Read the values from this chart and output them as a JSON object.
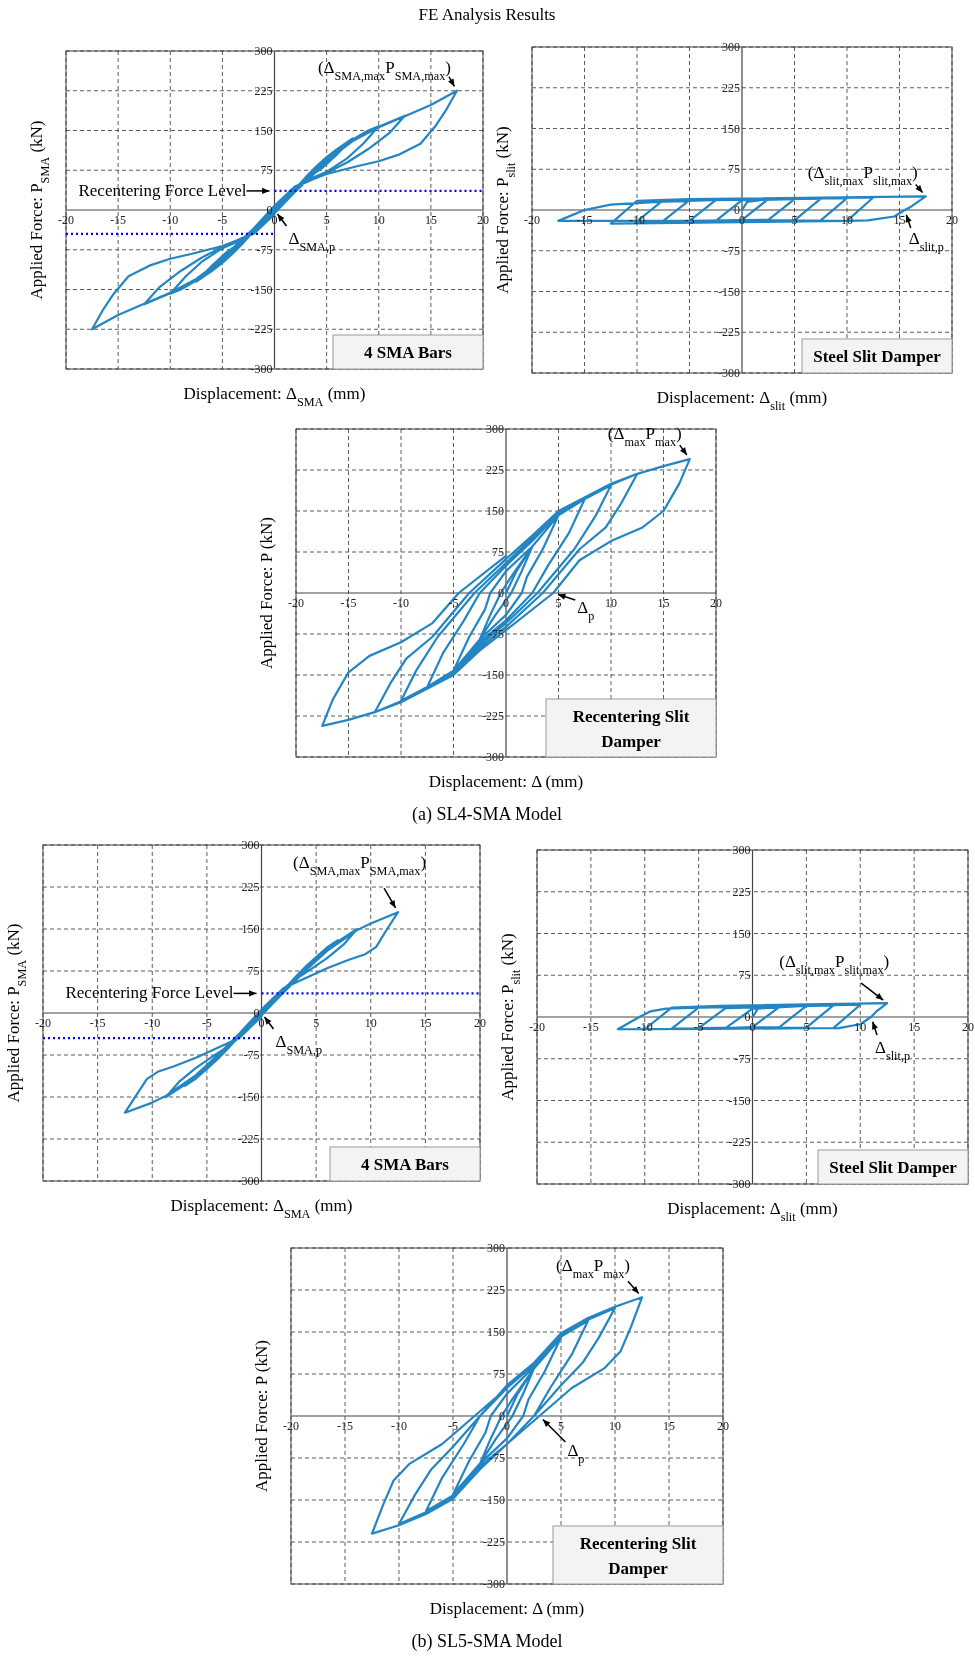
{
  "chart_data": [
    {
      "type": "line",
      "title": "FE Analysis Results",
      "xlabel": "Displacement: Δ$_{SMA}$ (mm)",
      "ylabel": "Applied Force: P$_{SMA}$ (kN)",
      "xlim": [
        -20,
        20
      ],
      "ylim": [
        -300,
        300
      ],
      "xticks": [
        -20,
        -15,
        -10,
        -5,
        0,
        5,
        10,
        15,
        20
      ],
      "yticks": [
        -300,
        -225,
        -150,
        -75,
        0,
        75,
        150,
        225,
        300
      ],
      "grid": true,
      "series": [
        {
          "color": "#2385c2",
          "x": [
            0,
            1,
            2,
            3,
            4,
            5,
            6,
            7.5,
            6,
            4.5,
            3,
            2,
            1,
            0,
            -1,
            -2,
            -3,
            -4,
            -5,
            -6,
            -7.5,
            -6,
            -4.5,
            -3,
            -2,
            -1,
            0,
            2,
            4,
            6,
            7.5,
            9,
            10,
            8.5,
            7,
            5,
            3,
            2,
            0,
            -2,
            -4,
            -6,
            -7.5,
            -9,
            -10,
            -8.5,
            -7,
            -5,
            -3,
            -2,
            0,
            2,
            4,
            6,
            7.5,
            9,
            10,
            12.5,
            11,
            9,
            7,
            5,
            3,
            2,
            0,
            -2,
            -4,
            -6,
            -7.5,
            -9,
            -10,
            -12.5,
            -11,
            -9,
            -7,
            -5,
            -3,
            -2,
            0,
            2,
            4,
            6,
            7.5,
            10,
            12.5,
            15,
            17.5,
            16.5,
            15.5,
            14,
            12,
            10,
            8,
            5,
            3,
            2,
            0,
            -2,
            -4,
            -6,
            -7.5,
            -10,
            -12.5,
            -15,
            -17.5,
            -16.5,
            -15.5,
            -14,
            -12,
            -10,
            -8,
            -5,
            -3,
            -2,
            0
          ],
          "values": [
            0,
            20,
            40,
            62,
            82,
            100,
            115,
            135,
            105,
            78,
            58,
            42,
            22,
            2,
            -20,
            -40,
            -62,
            -82,
            -100,
            -115,
            -135,
            -105,
            -78,
            -58,
            -42,
            -22,
            -2,
            38,
            78,
            112,
            133,
            150,
            158,
            125,
            98,
            72,
            55,
            43,
            4,
            -38,
            -78,
            -112,
            -133,
            -150,
            -158,
            -125,
            -98,
            -72,
            -55,
            -43,
            -4,
            36,
            75,
            110,
            131,
            148,
            157,
            178,
            145,
            115,
            90,
            70,
            52,
            44,
            6,
            -36,
            -75,
            -110,
            -131,
            -148,
            -157,
            -178,
            -145,
            -115,
            -90,
            -70,
            -52,
            -44,
            -6,
            35,
            72,
            108,
            130,
            156,
            177,
            198,
            225,
            190,
            160,
            125,
            105,
            92,
            83,
            68,
            53,
            45,
            8,
            -35,
            -72,
            -108,
            -130,
            -156,
            -177,
            -198,
            -225,
            -190,
            -160,
            -125,
            -105,
            -92,
            -83,
            -68,
            -53,
            -45,
            -8
          ]
        },
        {
          "color": "#0000ff",
          "line_style": "dotted",
          "x": [
            0,
            20
          ],
          "values": [
            36,
            36
          ]
        },
        {
          "color": "#0000ff",
          "line_style": "dotted",
          "x": [
            -20,
            0
          ],
          "values": [
            -45,
            -45
          ]
        }
      ],
      "annotations": [
        {
          "text": "(Δ$_{SMA,max}$P$_{SMA,max}$)",
          "x": 17.5,
          "y": 225
        },
        {
          "text": "Recentering Force Level",
          "x": 0,
          "y": 36
        },
        {
          "text": "Δ$_{SMA,p}$",
          "x": 0,
          "y": 0
        },
        "4 SMA Bars"
      ]
    },
    {
      "type": "line",
      "xlabel": "Displacement: Δ$_{slit}$ (mm)",
      "ylabel": "Applied Force: P$_{slit}$ (kN)",
      "xlim": [
        -20,
        20
      ],
      "ylim": [
        -300,
        300
      ],
      "xticks": [
        -20,
        -15,
        -10,
        -5,
        0,
        5,
        10,
        15,
        20
      ],
      "yticks": [
        -300,
        -225,
        -150,
        -75,
        0,
        75,
        150,
        225,
        300
      ],
      "grid": true,
      "series": [
        {
          "color": "#2385c2",
          "x": [
            0,
            0.5,
            2.5,
            0,
            -2.5,
            0,
            5,
            2.5,
            -5,
            -2.5,
            7.5,
            5,
            -7.5,
            -5,
            10,
            7.5,
            -10,
            -7.5,
            12.5,
            10,
            -12.5,
            -10,
            -5,
            17.5,
            16,
            15.5,
            14.5,
            12,
            10,
            -17.5,
            -15,
            -12.5,
            -8,
            0
          ],
          "values": [
            0,
            15,
            20,
            -18,
            -20,
            18,
            20,
            -18,
            -20,
            18,
            21,
            -19,
            -20,
            18,
            22,
            -19,
            -21,
            18,
            23,
            -20,
            -25,
            17,
            20,
            25,
            5,
            0,
            -12,
            -19,
            -20,
            -20,
            0,
            10,
            15,
            20
          ]
        }
      ],
      "annotations": [
        {
          "text": "(Δ$_{slit,max}$P$_{slit,max}$)",
          "x": 17.5,
          "y": 25
        },
        {
          "text": "Δ$_{slit,p}$",
          "x": 15.5,
          "y": 0
        },
        "Steel Slit Damper"
      ]
    },
    {
      "type": "line",
      "xlabel": "Displacement: Δ (mm)",
      "ylabel": "Applied Force: P (kN)",
      "xlim": [
        -20,
        20
      ],
      "ylim": [
        -300,
        300
      ],
      "xticks": [
        -20,
        -15,
        -10,
        -5,
        0,
        5,
        10,
        15,
        20
      ],
      "yticks": [
        -300,
        -225,
        -150,
        -75,
        0,
        75,
        150,
        225,
        300
      ],
      "grid": true,
      "series": [
        {
          "color": "#2385c2",
          "x": [
            0,
            1,
            2.5,
            1.5,
            0.5,
            -1,
            -2.5,
            -1.5,
            -0.5,
            0.5,
            2.5,
            5,
            3.5,
            2,
            1.5,
            0,
            -2.5,
            -5,
            -3.5,
            -2,
            -1.5,
            0,
            2.5,
            5,
            7.5,
            6,
            4,
            2.5,
            0,
            -2.5,
            -5,
            -7.5,
            -6,
            -4,
            -2.5,
            0,
            2.5,
            5,
            7.5,
            10,
            8.5,
            6.5,
            3,
            0,
            -2.5,
            -5,
            -7.5,
            -10,
            -8.5,
            -6.5,
            -3,
            0,
            2.5,
            5,
            10,
            12.5,
            11,
            9.5,
            7,
            3.5,
            0,
            -2.5,
            -5,
            -10,
            -12.5,
            -11,
            -9.5,
            -7,
            -3.5,
            0,
            2.5,
            5,
            10,
            12.5,
            15,
            17.5,
            16.5,
            15,
            13,
            10,
            7,
            4.5,
            0,
            -2.5,
            -5,
            -10,
            -12.5,
            -15,
            -17.5,
            -16.5,
            -15,
            -13,
            -10,
            -7,
            -4.5,
            0
          ],
          "values": [
            0,
            40,
            85,
            40,
            0,
            -40,
            -85,
            -40,
            0,
            30,
            85,
            142,
            80,
            30,
            0,
            -40,
            -85,
            -142,
            -80,
            -30,
            0,
            40,
            85,
            142,
            172,
            110,
            50,
            0,
            -50,
            -90,
            -142,
            -172,
            -110,
            -50,
            0,
            50,
            95,
            145,
            172,
            197,
            140,
            80,
            0,
            -55,
            -95,
            -145,
            -172,
            -197,
            -140,
            -80,
            0,
            55,
            100,
            148,
            198,
            218,
            165,
            120,
            80,
            0,
            -62,
            -100,
            -148,
            -198,
            -218,
            -165,
            -120,
            -80,
            0,
            62,
            105,
            150,
            200,
            218,
            232,
            245,
            200,
            150,
            120,
            95,
            60,
            0,
            -68,
            -105,
            -150,
            -200,
            -218,
            -232,
            -243,
            -195,
            -145,
            -115,
            -90,
            -55,
            0,
            68
          ]
        }
      ],
      "annotations": [
        {
          "text": "(Δ$_{max}$P$_{max}$)",
          "x": 17.5,
          "y": 245
        },
        {
          "text": "Δ$_{p}$",
          "x": 4.5,
          "y": 0
        },
        "Recentering Slit Damper",
        "(a) SL4-SMA Model"
      ]
    },
    {
      "type": "line",
      "xlabel": "Displacement: Δ$_{SMA}$ (mm)",
      "ylabel": "Applied Force: P$_{SMA}$ (kN)",
      "xlim": [
        -20,
        20
      ],
      "ylim": [
        -300,
        300
      ],
      "xticks": [
        -20,
        -15,
        -10,
        -5,
        0,
        5,
        10,
        15,
        20
      ],
      "yticks": [
        -300,
        -225,
        -150,
        -75,
        0,
        75,
        150,
        225,
        300
      ],
      "grid": true,
      "series": [
        {
          "color": "#2385c2",
          "x": [
            0,
            1,
            2,
            3,
            4,
            5,
            6,
            7,
            5.5,
            4,
            3,
            2,
            1,
            0,
            -1,
            -2,
            -3,
            -4,
            -5,
            -6,
            -7,
            -5.5,
            -4,
            -3,
            -2,
            -1,
            0,
            2,
            4,
            6,
            7,
            8.75,
            7.5,
            6,
            4.5,
            3,
            2,
            0,
            -2,
            -4,
            -6,
            -7,
            -8.75,
            -7.5,
            -6,
            -4.5,
            -3,
            -2,
            0,
            2,
            4,
            6,
            8.75,
            10,
            12.5,
            11.5,
            10.5,
            9.5,
            8,
            6,
            4,
            2,
            0,
            -2,
            -4,
            -6,
            -8.75,
            -10,
            -12.5,
            -11.5,
            -10.5,
            -9.5,
            -8,
            -6,
            -4,
            -2,
            0
          ],
          "values": [
            0,
            20,
            40,
            62,
            82,
            100,
            117,
            130,
            103,
            78,
            58,
            42,
            22,
            2,
            -20,
            -40,
            -62,
            -82,
            -100,
            -117,
            -130,
            -103,
            -78,
            -58,
            -42,
            -22,
            -2,
            38,
            78,
            114,
            128,
            150,
            122,
            98,
            78,
            59,
            43,
            4,
            -38,
            -78,
            -114,
            -128,
            -150,
            -122,
            -98,
            -78,
            -59,
            -43,
            -4,
            36,
            75,
            111,
            148,
            160,
            180,
            150,
            118,
            105,
            95,
            80,
            62,
            44,
            6,
            -36,
            -75,
            -111,
            -148,
            -160,
            -178,
            -148,
            -118,
            -105,
            -95,
            -80,
            -62,
            -44,
            -6
          ]
        },
        {
          "color": "#0000ff",
          "line_style": "dotted",
          "x": [
            0,
            20
          ],
          "values": [
            35,
            35
          ]
        },
        {
          "color": "#0000ff",
          "line_style": "dotted",
          "x": [
            -20,
            0
          ],
          "values": [
            -45,
            -45
          ]
        }
      ],
      "annotations": [
        {
          "text": "(Δ$_{SMA,max}$P$_{SMA,max}$)",
          "x": 12.5,
          "y": 180
        },
        {
          "text": "Recentering Force Level",
          "x": 0,
          "y": 35
        },
        {
          "text": "Δ$_{SMA,p}$",
          "x": 0,
          "y": 0
        },
        "4 SMA Bars"
      ]
    },
    {
      "type": "line",
      "xlabel": "Displacement: Δ$_{slit}$ (mm)",
      "ylabel": "Applied Force: P$_{slit}$ (kN)",
      "xlim": [
        -20,
        20
      ],
      "ylim": [
        -300,
        300
      ],
      "xticks": [
        -20,
        -15,
        -10,
        -5,
        0,
        5,
        10,
        15,
        20
      ],
      "yticks": [
        -300,
        -225,
        -150,
        -75,
        0,
        75,
        150,
        225,
        300
      ],
      "grid": true,
      "series": [
        {
          "color": "#2385c2",
          "x": [
            0,
            0.5,
            2.5,
            0,
            -2.5,
            0,
            5,
            2.5,
            -5,
            -2.5,
            7.5,
            5,
            -7.5,
            -5,
            10,
            7.5,
            -10,
            -7.5,
            -3,
            12.5,
            11.5,
            11,
            10,
            8,
            -12.5,
            -10.5,
            -9.5,
            -8,
            0
          ],
          "values": [
            0,
            15,
            18,
            -18,
            -20,
            15,
            20,
            -18,
            -20,
            16,
            21,
            -19,
            -21,
            17,
            22,
            -20,
            -22,
            17,
            20,
            25,
            10,
            0,
            -13,
            -20,
            -22,
            0,
            10,
            15,
            20
          ]
        }
      ],
      "annotations": [
        {
          "text": "(Δ$_{slit,max}$P$_{slit,max}$)",
          "x": 12.5,
          "y": 25
        },
        {
          "text": "Δ$_{slit,p}$",
          "x": 11,
          "y": 0
        },
        "Steel Slit Damper"
      ]
    },
    {
      "type": "line",
      "xlabel": "Displacement: Δ (mm)",
      "ylabel": "Applied Force: P (kN)",
      "xlim": [
        -20,
        20
      ],
      "ylim": [
        -300,
        300
      ],
      "xticks": [
        -20,
        -15,
        -10,
        -5,
        0,
        5,
        10,
        15,
        20
      ],
      "yticks": [
        -300,
        -225,
        -150,
        -75,
        0,
        75,
        150,
        225,
        300
      ],
      "grid": true,
      "series": [
        {
          "color": "#2385c2",
          "x": [
            0,
            1,
            2.5,
            1.5,
            0.5,
            -1,
            -2.5,
            -1.5,
            -0.5,
            0.5,
            2.5,
            5,
            3.5,
            2,
            1.5,
            0,
            -2.5,
            -5,
            -3.5,
            -2,
            -1.5,
            0,
            2.5,
            5,
            7.5,
            6,
            4,
            2.5,
            0,
            -2.5,
            -5,
            -7.5,
            -6,
            -4,
            -2.5,
            0,
            2.5,
            5,
            7.5,
            10,
            8.5,
            7,
            5,
            2.5,
            0,
            -2.5,
            -5,
            -7.5,
            -10,
            -8.5,
            -7,
            -5,
            -2.5,
            0,
            2.5,
            5,
            7.5,
            10,
            12.5,
            11.5,
            10.5,
            9,
            6,
            3,
            0,
            -2.5,
            -5,
            -7.5,
            -10,
            -12.5,
            -11.5,
            -10.5,
            -9,
            -6,
            -3,
            0
          ],
          "values": [
            0,
            40,
            85,
            40,
            0,
            -40,
            -85,
            -40,
            0,
            30,
            85,
            140,
            80,
            30,
            0,
            -40,
            -85,
            -140,
            -80,
            -30,
            0,
            40,
            88,
            142,
            170,
            110,
            50,
            0,
            -50,
            -90,
            -142,
            -170,
            -110,
            -50,
            0,
            50,
            92,
            145,
            172,
            193,
            140,
            95,
            55,
            0,
            -50,
            -95,
            -145,
            -172,
            -193,
            -140,
            -95,
            -55,
            0,
            55,
            95,
            148,
            175,
            195,
            212,
            160,
            115,
            85,
            50,
            0,
            -50,
            -95,
            -148,
            -175,
            -195,
            -210,
            -160,
            -115,
            -85,
            -50,
            0,
            50
          ]
        }
      ],
      "annotations": [
        {
          "text": "(Δ$_{max}$P$_{max}$)",
          "x": 12.5,
          "y": 212
        },
        {
          "text": "Δ$_{p}$",
          "x": 3,
          "y": 0
        },
        "Recentering Slit Damper",
        "(b) SL5-SMA Model"
      ]
    }
  ]
}
